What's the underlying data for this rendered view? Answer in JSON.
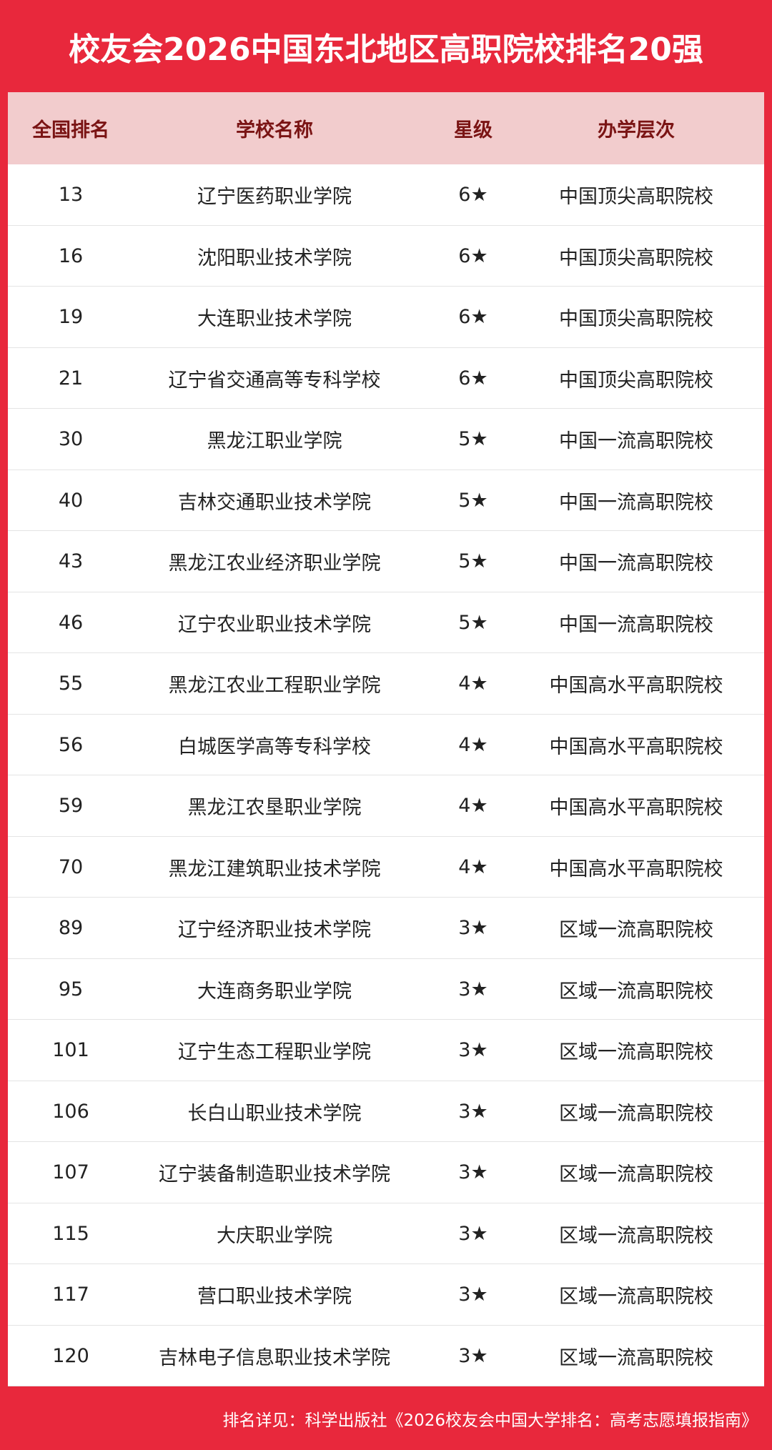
{
  "header": {
    "title": "校友会2026中国东北地区高职院校排名20强"
  },
  "table": {
    "columns": [
      "全国排名",
      "学校名称",
      "星级",
      "办学层次"
    ],
    "rows": [
      [
        "13",
        "辽宁医药职业学院",
        "6★",
        "中国顶尖高职院校"
      ],
      [
        "16",
        "沈阳职业技术学院",
        "6★",
        "中国顶尖高职院校"
      ],
      [
        "19",
        "大连职业技术学院",
        "6★",
        "中国顶尖高职院校"
      ],
      [
        "21",
        "辽宁省交通高等专科学校",
        "6★",
        "中国顶尖高职院校"
      ],
      [
        "30",
        "黑龙江职业学院",
        "5★",
        "中国一流高职院校"
      ],
      [
        "40",
        "吉林交通职业技术学院",
        "5★",
        "中国一流高职院校"
      ],
      [
        "43",
        "黑龙江农业经济职业学院",
        "5★",
        "中国一流高职院校"
      ],
      [
        "46",
        "辽宁农业职业技术学院",
        "5★",
        "中国一流高职院校"
      ],
      [
        "55",
        "黑龙江农业工程职业学院",
        "4★",
        "中国高水平高职院校"
      ],
      [
        "56",
        "白城医学高等专科学校",
        "4★",
        "中国高水平高职院校"
      ],
      [
        "59",
        "黑龙江农垦职业学院",
        "4★",
        "中国高水平高职院校"
      ],
      [
        "70",
        "黑龙江建筑职业技术学院",
        "4★",
        "中国高水平高职院校"
      ],
      [
        "89",
        "辽宁经济职业技术学院",
        "3★",
        "区域一流高职院校"
      ],
      [
        "95",
        "大连商务职业学院",
        "3★",
        "区域一流高职院校"
      ],
      [
        "101",
        "辽宁生态工程职业学院",
        "3★",
        "区域一流高职院校"
      ],
      [
        "106",
        "长白山职业技术学院",
        "3★",
        "区域一流高职院校"
      ],
      [
        "107",
        "辽宁装备制造职业技术学院",
        "3★",
        "区域一流高职院校"
      ],
      [
        "115",
        "大庆职业学院",
        "3★",
        "区域一流高职院校"
      ],
      [
        "117",
        "营口职业技术学院",
        "3★",
        "区域一流高职院校"
      ],
      [
        "120",
        "吉林电子信息职业技术学院",
        "3★",
        "区域一流高职院校"
      ]
    ]
  },
  "footer": {
    "text": "排名详见：科学出版社《2026校友会中国大学排名：高考志愿填报指南》"
  }
}
